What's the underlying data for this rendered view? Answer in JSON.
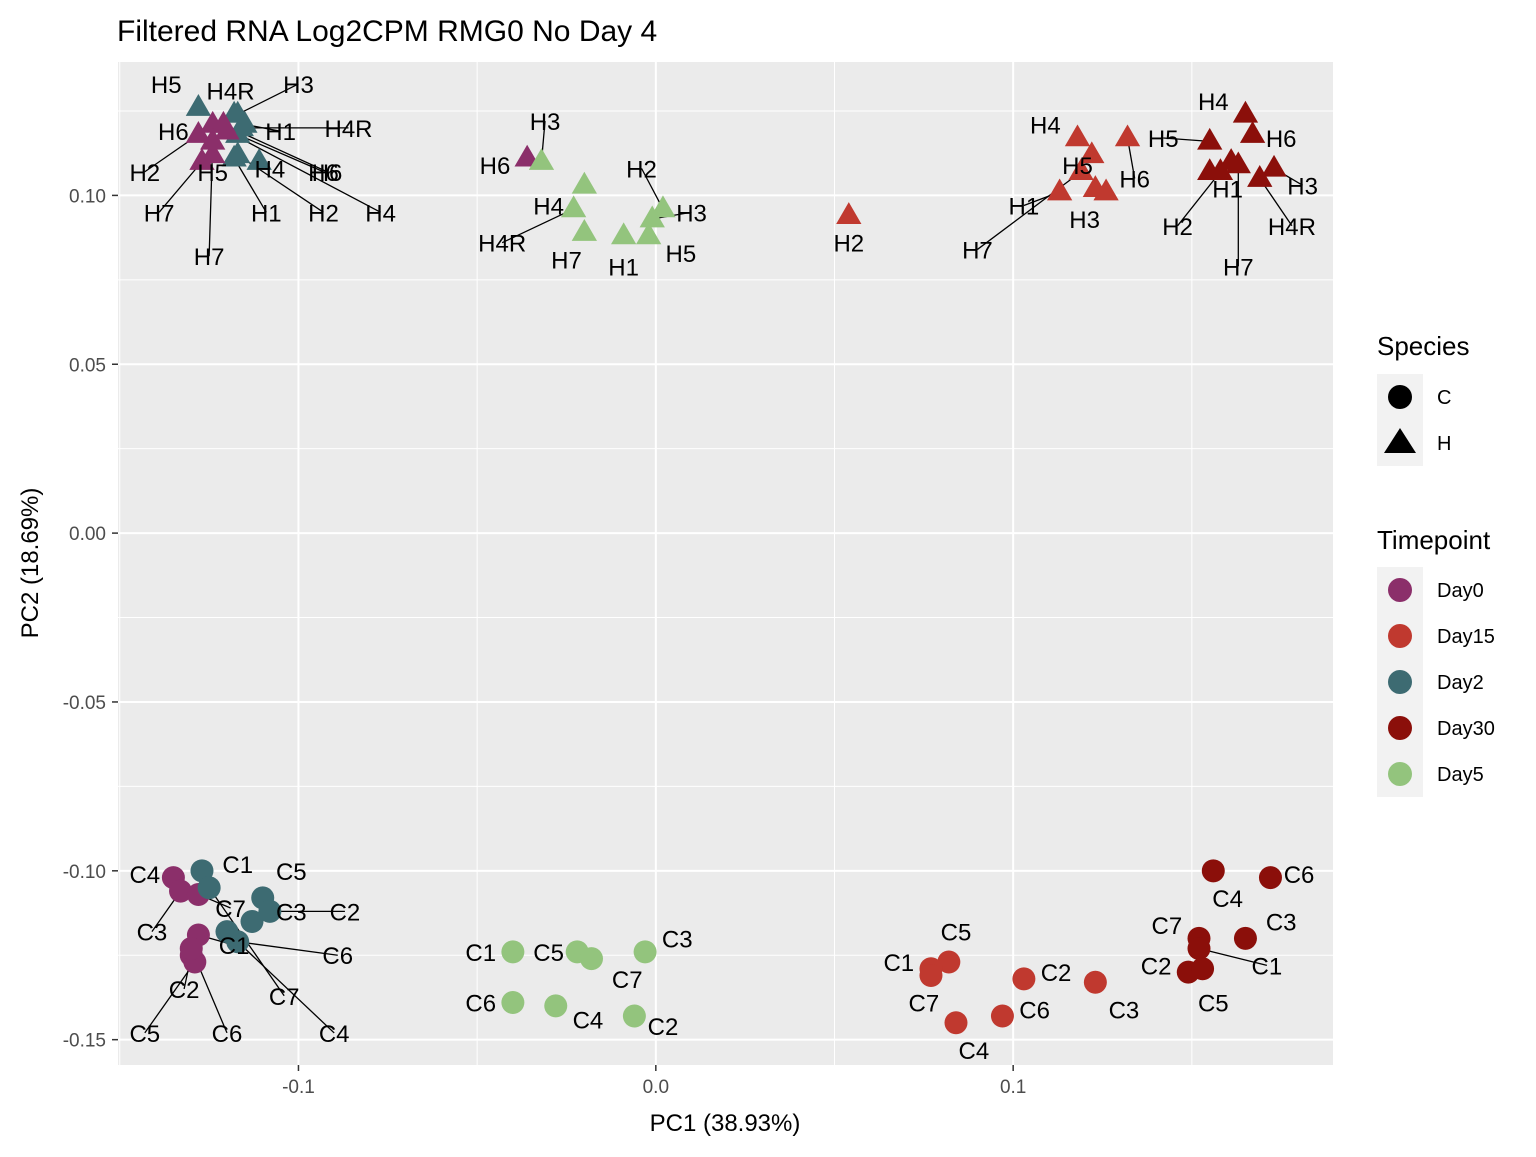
{
  "chart_data": {
    "type": "scatter",
    "title": "Filtered RNA Log2CPM RMG0 No Day 4",
    "xlabel": "PC1 (38.93%)",
    "ylabel": "PC2 (18.69%)",
    "xlim": [
      -0.1505,
      0.1895
    ],
    "ylim": [
      -0.1575,
      0.1395
    ],
    "xticks": [
      -0.1,
      0.0,
      0.1
    ],
    "xtick_labels": [
      "-0.1",
      "0.0",
      "0.1"
    ],
    "yticks": [
      -0.15,
      -0.1,
      -0.05,
      0.0,
      0.05,
      0.1
    ],
    "ytick_labels": [
      "-0.15",
      "-0.10",
      "-0.05",
      "0.00",
      "0.05",
      "0.10"
    ],
    "grid": true,
    "panel_background": "#ebebeb",
    "legend_position": "right",
    "legend_species": {
      "title": "Species",
      "items": [
        {
          "label": "C",
          "shape": "circle"
        },
        {
          "label": "H",
          "shape": "triangle"
        }
      ]
    },
    "legend_timepoint": {
      "title": "Timepoint",
      "items": [
        {
          "label": "Day0",
          "color": "#8b2f6a"
        },
        {
          "label": "Day15",
          "color": "#c0392f"
        },
        {
          "label": "Day2",
          "color": "#3d6b72"
        },
        {
          "label": "Day30",
          "color": "#8b0f0a"
        },
        {
          "label": "Day5",
          "color": "#93c47d"
        }
      ]
    },
    "points": [
      {
        "label": "C4",
        "species": "C",
        "timepoint": "Day0",
        "x": -0.135,
        "y": -0.102,
        "lx": -0.143,
        "ly": -0.101,
        "line": false
      },
      {
        "label": "C3",
        "species": "C",
        "timepoint": "Day0",
        "x": -0.133,
        "y": -0.106,
        "lx": -0.141,
        "ly": -0.118,
        "line": true
      },
      {
        "label": "C7",
        "species": "C",
        "timepoint": "Day0",
        "x": -0.128,
        "y": -0.107,
        "lx": -0.119,
        "ly": -0.111,
        "line": true
      },
      {
        "label": "C1",
        "species": "C",
        "timepoint": "Day0",
        "x": -0.128,
        "y": -0.119,
        "lx": -0.118,
        "ly": -0.122,
        "line": true
      },
      {
        "label": "C2",
        "species": "C",
        "timepoint": "Day0",
        "x": -0.13,
        "y": -0.125,
        "lx": -0.132,
        "ly": -0.135,
        "line": true
      },
      {
        "label": "C5",
        "species": "C",
        "timepoint": "Day0",
        "x": -0.129,
        "y": -0.127,
        "lx": -0.143,
        "ly": -0.148,
        "line": true
      },
      {
        "label": "C6",
        "species": "C",
        "timepoint": "Day0",
        "x": -0.13,
        "y": -0.123,
        "lx": -0.12,
        "ly": -0.148,
        "line": true
      },
      {
        "label": "C1",
        "species": "C",
        "timepoint": "Day2",
        "x": -0.127,
        "y": -0.1,
        "lx": -0.117,
        "ly": -0.098,
        "line": false
      },
      {
        "label": "C5",
        "species": "C",
        "timepoint": "Day2",
        "x": -0.11,
        "y": -0.108,
        "lx": -0.102,
        "ly": -0.1,
        "line": false
      },
      {
        "label": "C3",
        "species": "C",
        "timepoint": "Day2",
        "x": -0.113,
        "y": -0.115,
        "lx": -0.102,
        "ly": -0.112,
        "line": false
      },
      {
        "label": "C2",
        "species": "C",
        "timepoint": "Day2",
        "x": -0.108,
        "y": -0.112,
        "lx": -0.087,
        "ly": -0.112,
        "line": true
      },
      {
        "label": "C6",
        "species": "C",
        "timepoint": "Day2",
        "x": -0.117,
        "y": -0.121,
        "lx": -0.089,
        "ly": -0.125,
        "line": true
      },
      {
        "label": "C7",
        "species": "C",
        "timepoint": "Day2",
        "x": -0.125,
        "y": -0.105,
        "lx": -0.104,
        "ly": -0.137,
        "line": true
      },
      {
        "label": "C4",
        "species": "C",
        "timepoint": "Day2",
        "x": -0.12,
        "y": -0.118,
        "lx": -0.09,
        "ly": -0.148,
        "line": true
      },
      {
        "label": "C1",
        "species": "C",
        "timepoint": "Day5",
        "x": -0.04,
        "y": -0.124,
        "lx": -0.049,
        "ly": -0.124,
        "line": false
      },
      {
        "label": "C5",
        "species": "C",
        "timepoint": "Day5",
        "x": -0.022,
        "y": -0.124,
        "lx": -0.03,
        "ly": -0.124,
        "line": false
      },
      {
        "label": "C7",
        "species": "C",
        "timepoint": "Day5",
        "x": -0.018,
        "y": -0.126,
        "lx": -0.008,
        "ly": -0.132,
        "line": false
      },
      {
        "label": "C3",
        "species": "C",
        "timepoint": "Day5",
        "x": -0.003,
        "y": -0.124,
        "lx": 0.006,
        "ly": -0.12,
        "line": false
      },
      {
        "label": "C6",
        "species": "C",
        "timepoint": "Day5",
        "x": -0.04,
        "y": -0.139,
        "lx": -0.049,
        "ly": -0.139,
        "line": false
      },
      {
        "label": "C4",
        "species": "C",
        "timepoint": "Day5",
        "x": -0.028,
        "y": -0.14,
        "lx": -0.019,
        "ly": -0.144,
        "line": false
      },
      {
        "label": "C2",
        "species": "C",
        "timepoint": "Day5",
        "x": -0.006,
        "y": -0.143,
        "lx": 0.002,
        "ly": -0.146,
        "line": false
      },
      {
        "label": "C5",
        "species": "C",
        "timepoint": "Day15",
        "x": 0.082,
        "y": -0.127,
        "lx": 0.084,
        "ly": -0.118,
        "line": false
      },
      {
        "label": "C1",
        "species": "C",
        "timepoint": "Day15",
        "x": 0.077,
        "y": -0.129,
        "lx": 0.068,
        "ly": -0.127,
        "line": false
      },
      {
        "label": "C7",
        "species": "C",
        "timepoint": "Day15",
        "x": 0.077,
        "y": -0.131,
        "lx": 0.075,
        "ly": -0.139,
        "line": false
      },
      {
        "label": "C4",
        "species": "C",
        "timepoint": "Day15",
        "x": 0.084,
        "y": -0.145,
        "lx": 0.089,
        "ly": -0.153,
        "line": false
      },
      {
        "label": "C6",
        "species": "C",
        "timepoint": "Day15",
        "x": 0.097,
        "y": -0.143,
        "lx": 0.106,
        "ly": -0.141,
        "line": false
      },
      {
        "label": "C2",
        "species": "C",
        "timepoint": "Day15",
        "x": 0.103,
        "y": -0.132,
        "lx": 0.112,
        "ly": -0.13,
        "line": false
      },
      {
        "label": "C3",
        "species": "C",
        "timepoint": "Day15",
        "x": 0.123,
        "y": -0.133,
        "lx": 0.131,
        "ly": -0.141,
        "line": false
      },
      {
        "label": "C4",
        "species": "C",
        "timepoint": "Day30",
        "x": 0.156,
        "y": -0.1,
        "lx": 0.16,
        "ly": -0.108,
        "line": false
      },
      {
        "label": "C6",
        "species": "C",
        "timepoint": "Day30",
        "x": 0.172,
        "y": -0.102,
        "lx": 0.18,
        "ly": -0.101,
        "line": false
      },
      {
        "label": "C7",
        "species": "C",
        "timepoint": "Day30",
        "x": 0.152,
        "y": -0.12,
        "lx": 0.143,
        "ly": -0.116,
        "line": false
      },
      {
        "label": "C3",
        "species": "C",
        "timepoint": "Day30",
        "x": 0.165,
        "y": -0.12,
        "lx": 0.175,
        "ly": -0.115,
        "line": false
      },
      {
        "label": "C2",
        "species": "C",
        "timepoint": "Day30",
        "x": 0.149,
        "y": -0.13,
        "lx": 0.14,
        "ly": -0.128,
        "line": false
      },
      {
        "label": "C1",
        "species": "C",
        "timepoint": "Day30",
        "x": 0.152,
        "y": -0.123,
        "lx": 0.171,
        "ly": -0.128,
        "line": true
      },
      {
        "label": "C5",
        "species": "C",
        "timepoint": "Day30",
        "x": 0.153,
        "y": -0.129,
        "lx": 0.156,
        "ly": -0.139,
        "line": false
      },
      {
        "label": "H5",
        "species": "H",
        "timepoint": "Day2",
        "x": -0.128,
        "y": 0.126,
        "lx": -0.137,
        "ly": 0.133,
        "line": false
      },
      {
        "label": "H4R",
        "species": "H",
        "timepoint": "Day2",
        "x": -0.118,
        "y": 0.124,
        "lx": -0.119,
        "ly": 0.131,
        "line": false
      },
      {
        "label": "H3",
        "species": "H",
        "timepoint": "Day2",
        "x": -0.117,
        "y": 0.124,
        "lx": -0.1,
        "ly": 0.133,
        "line": true
      },
      {
        "label": "H1",
        "species": "H",
        "timepoint": "Day2",
        "x": -0.115,
        "y": 0.121,
        "lx": -0.105,
        "ly": 0.119,
        "line": true
      },
      {
        "label": "H4R",
        "species": "H",
        "timepoint": "Day2",
        "x": -0.116,
        "y": 0.12,
        "lx": -0.086,
        "ly": 0.12,
        "line": true
      },
      {
        "label": "H6",
        "species": "H",
        "timepoint": "Day2",
        "x": -0.117,
        "y": 0.118,
        "lx": -0.093,
        "ly": 0.107,
        "line": true
      },
      {
        "label": "H4",
        "species": "H",
        "timepoint": "Day2",
        "x": -0.111,
        "y": 0.11,
        "lx": -0.108,
        "ly": 0.108,
        "line": false
      },
      {
        "label": "H2",
        "species": "H",
        "timepoint": "Day2",
        "x": -0.117,
        "y": 0.112,
        "lx": -0.093,
        "ly": 0.095,
        "line": true
      },
      {
        "label": "H1",
        "species": "H",
        "timepoint": "Day2",
        "x": -0.118,
        "y": 0.111,
        "lx": -0.109,
        "ly": 0.095,
        "line": true
      },
      {
        "label": "H6",
        "species": "H",
        "timepoint": "Day0",
        "x": -0.124,
        "y": 0.121,
        "lx": -0.135,
        "ly": 0.119,
        "line": false
      },
      {
        "label": "H2",
        "species": "H",
        "timepoint": "Day0",
        "x": -0.128,
        "y": 0.118,
        "lx": -0.143,
        "ly": 0.107,
        "line": true
      },
      {
        "label": "H5",
        "species": "H",
        "timepoint": "Day0",
        "x": -0.124,
        "y": 0.112,
        "lx": -0.124,
        "ly": 0.107,
        "line": false
      },
      {
        "label": "H7",
        "species": "H",
        "timepoint": "Day0",
        "x": -0.127,
        "y": 0.11,
        "lx": -0.139,
        "ly": 0.095,
        "line": true
      },
      {
        "label": "H7",
        "species": "H",
        "timepoint": "Day0",
        "x": -0.124,
        "y": 0.116,
        "lx": -0.125,
        "ly": 0.082,
        "line": true
      },
      {
        "label": "H6",
        "species": "H",
        "timepoint": "Day0",
        "x": -0.121,
        "y": 0.121,
        "lx": -0.092,
        "ly": 0.107,
        "line": true
      },
      {
        "label": "H4",
        "species": "H",
        "timepoint": "Day0",
        "x": -0.12,
        "y": 0.119,
        "lx": -0.077,
        "ly": 0.095,
        "line": true
      },
      {
        "label": "H6",
        "species": "H",
        "timepoint": "Day0",
        "x": -0.036,
        "y": 0.111,
        "lx": -0.045,
        "ly": 0.109,
        "line": false
      },
      {
        "label": "H3",
        "species": "H",
        "timepoint": "Day5",
        "x": -0.032,
        "y": 0.11,
        "lx": -0.031,
        "ly": 0.122,
        "line": true
      },
      {
        "label": "H2",
        "species": "H",
        "timepoint": "Day5",
        "x": 0.002,
        "y": 0.096,
        "lx": -0.004,
        "ly": 0.108,
        "line": true
      },
      {
        "label": "H4",
        "species": "H",
        "timepoint": "Day5",
        "x": -0.02,
        "y": 0.103,
        "lx": -0.03,
        "ly": 0.097,
        "line": false
      },
      {
        "label": "H3",
        "species": "H",
        "timepoint": "Day5",
        "x": -0.001,
        "y": 0.093,
        "lx": 0.01,
        "ly": 0.095,
        "line": true
      },
      {
        "label": "H4R",
        "species": "H",
        "timepoint": "Day5",
        "x": -0.023,
        "y": 0.096,
        "lx": -0.043,
        "ly": 0.086,
        "line": true
      },
      {
        "label": "H7",
        "species": "H",
        "timepoint": "Day5",
        "x": -0.02,
        "y": 0.089,
        "lx": -0.025,
        "ly": 0.081,
        "line": false
      },
      {
        "label": "H1",
        "species": "H",
        "timepoint": "Day5",
        "x": -0.009,
        "y": 0.088,
        "lx": -0.009,
        "ly": 0.079,
        "line": false
      },
      {
        "label": "H5",
        "species": "H",
        "timepoint": "Day5",
        "x": -0.002,
        "y": 0.088,
        "lx": 0.007,
        "ly": 0.083,
        "line": false
      },
      {
        "label": "H2",
        "species": "H",
        "timepoint": "Day15",
        "x": 0.054,
        "y": 0.094,
        "lx": 0.054,
        "ly": 0.086,
        "line": false
      },
      {
        "label": "H4",
        "species": "H",
        "timepoint": "Day15",
        "x": 0.118,
        "y": 0.117,
        "lx": 0.109,
        "ly": 0.121,
        "line": false
      },
      {
        "label": "H6",
        "species": "H",
        "timepoint": "Day15",
        "x": 0.132,
        "y": 0.117,
        "lx": 0.134,
        "ly": 0.105,
        "line": true
      },
      {
        "label": "H5",
        "species": "H",
        "timepoint": "Day15",
        "x": 0.122,
        "y": 0.112,
        "lx": 0.118,
        "ly": 0.109,
        "line": false
      },
      {
        "label": "H3",
        "species": "H",
        "timepoint": "Day15",
        "x": 0.123,
        "y": 0.102,
        "lx": 0.12,
        "ly": 0.093,
        "line": false
      },
      {
        "label": "H1",
        "species": "H",
        "timepoint": "Day15",
        "x": 0.113,
        "y": 0.101,
        "lx": 0.103,
        "ly": 0.097,
        "line": true
      },
      {
        "label": "H7",
        "species": "H",
        "timepoint": "Day15",
        "x": 0.119,
        "y": 0.107,
        "lx": 0.09,
        "ly": 0.084,
        "line": true
      },
      {
        "label": "H",
        "species": "H",
        "timepoint": "Day15",
        "x": 0.126,
        "y": 0.101,
        "lx": 0.0,
        "ly": 0.0,
        "line": false,
        "hidden_label": true
      },
      {
        "label": "H4",
        "species": "H",
        "timepoint": "Day30",
        "x": 0.165,
        "y": 0.124,
        "lx": 0.156,
        "ly": 0.128,
        "line": false
      },
      {
        "label": "H5",
        "species": "H",
        "timepoint": "Day30",
        "x": 0.155,
        "y": 0.116,
        "lx": 0.142,
        "ly": 0.117,
        "line": true
      },
      {
        "label": "H6",
        "species": "H",
        "timepoint": "Day30",
        "x": 0.167,
        "y": 0.118,
        "lx": 0.175,
        "ly": 0.117,
        "line": false
      },
      {
        "label": "H1",
        "species": "H",
        "timepoint": "Day30",
        "x": 0.161,
        "y": 0.11,
        "lx": 0.16,
        "ly": 0.102,
        "line": false
      },
      {
        "label": "H3",
        "species": "H",
        "timepoint": "Day30",
        "x": 0.173,
        "y": 0.108,
        "lx": 0.181,
        "ly": 0.103,
        "line": true
      },
      {
        "label": "H2",
        "species": "H",
        "timepoint": "Day30",
        "x": 0.158,
        "y": 0.107,
        "lx": 0.146,
        "ly": 0.091,
        "line": true
      },
      {
        "label": "H4R",
        "species": "H",
        "timepoint": "Day30",
        "x": 0.169,
        "y": 0.105,
        "lx": 0.178,
        "ly": 0.091,
        "line": true
      },
      {
        "label": "H7",
        "species": "H",
        "timepoint": "Day30",
        "x": 0.163,
        "y": 0.109,
        "lx": 0.163,
        "ly": 0.079,
        "line": true
      },
      {
        "label": "H",
        "species": "H",
        "timepoint": "Day30",
        "x": 0.155,
        "y": 0.107,
        "lx": 0.0,
        "ly": 0.0,
        "line": false,
        "hidden_label": true
      }
    ]
  }
}
